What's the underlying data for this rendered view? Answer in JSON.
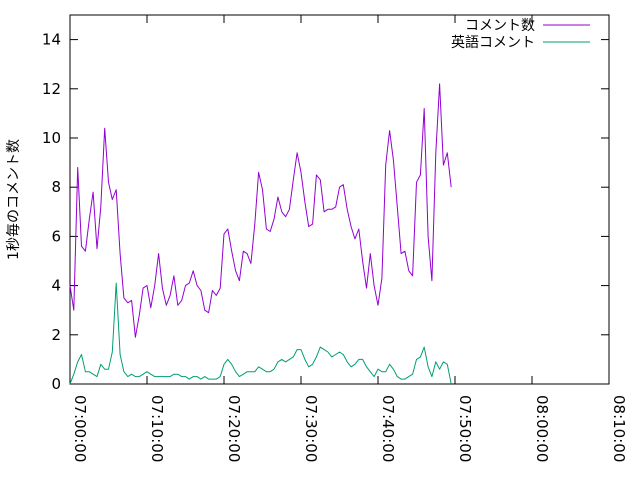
{
  "chart_data": {
    "type": "line",
    "title": "",
    "xlabel": "",
    "ylabel": "1秒毎のコメント数",
    "xlim": [
      "07:00:00",
      "08:10:00"
    ],
    "ylim": [
      0,
      15
    ],
    "x_ticks": [
      "07:00:00",
      "07:10:00",
      "07:20:00",
      "07:30:00",
      "07:40:00",
      "07:50:00",
      "08:00:00",
      "08:10:00"
    ],
    "y_ticks": [
      0,
      2,
      4,
      6,
      8,
      10,
      12,
      14
    ],
    "grid": false,
    "legend_position": "top-right",
    "x_interval_seconds": 30,
    "series": [
      {
        "name": "コメント数",
        "color": "#9400d3",
        "values": [
          4.0,
          3.0,
          8.8,
          5.6,
          5.4,
          6.7,
          7.8,
          5.5,
          7.2,
          10.4,
          8.2,
          7.5,
          7.9,
          5.3,
          3.5,
          3.3,
          3.4,
          1.9,
          2.8,
          3.9,
          4.0,
          3.1,
          4.0,
          5.3,
          3.9,
          3.2,
          3.6,
          4.4,
          3.2,
          3.4,
          4.0,
          4.1,
          4.6,
          4.0,
          3.8,
          3.0,
          2.9,
          3.8,
          3.6,
          3.9,
          6.1,
          6.3,
          5.4,
          4.6,
          4.2,
          5.4,
          5.3,
          4.9,
          6.5,
          8.6,
          7.9,
          6.3,
          6.2,
          6.7,
          7.6,
          7.0,
          6.8,
          7.1,
          8.3,
          9.4,
          8.6,
          7.4,
          6.4,
          6.5,
          8.5,
          8.3,
          7.0,
          7.1,
          7.1,
          7.2,
          8.0,
          8.1,
          7.1,
          6.4,
          5.9,
          6.3,
          5.0,
          3.9,
          5.3,
          4.0,
          3.2,
          4.3,
          8.9,
          10.3,
          9.1,
          7.2,
          5.3,
          5.4,
          4.6,
          4.4,
          8.2,
          8.5,
          11.2,
          6.0,
          4.2,
          9.4,
          12.2,
          8.9,
          9.4,
          8.0
        ]
      },
      {
        "name": "英語コメント",
        "color": "#009e73",
        "values": [
          0.0,
          0.4,
          0.9,
          1.2,
          0.5,
          0.5,
          0.4,
          0.3,
          0.8,
          0.6,
          0.6,
          1.3,
          4.1,
          1.2,
          0.5,
          0.3,
          0.4,
          0.3,
          0.3,
          0.4,
          0.5,
          0.4,
          0.3,
          0.3,
          0.3,
          0.3,
          0.3,
          0.4,
          0.4,
          0.3,
          0.3,
          0.2,
          0.3,
          0.3,
          0.2,
          0.3,
          0.2,
          0.2,
          0.2,
          0.3,
          0.8,
          1.0,
          0.8,
          0.5,
          0.3,
          0.4,
          0.5,
          0.5,
          0.5,
          0.7,
          0.6,
          0.5,
          0.5,
          0.6,
          0.9,
          1.0,
          0.9,
          1.0,
          1.1,
          1.4,
          1.4,
          1.0,
          0.7,
          0.8,
          1.1,
          1.5,
          1.4,
          1.3,
          1.1,
          1.2,
          1.3,
          1.2,
          0.9,
          0.7,
          0.8,
          1.0,
          1.0,
          0.7,
          0.5,
          0.3,
          0.6,
          0.5,
          0.5,
          0.8,
          0.6,
          0.3,
          0.2,
          0.2,
          0.3,
          0.4,
          1.0,
          1.1,
          1.5,
          0.7,
          0.3,
          0.9,
          0.6,
          0.9,
          0.8,
          0.0
        ]
      }
    ]
  }
}
